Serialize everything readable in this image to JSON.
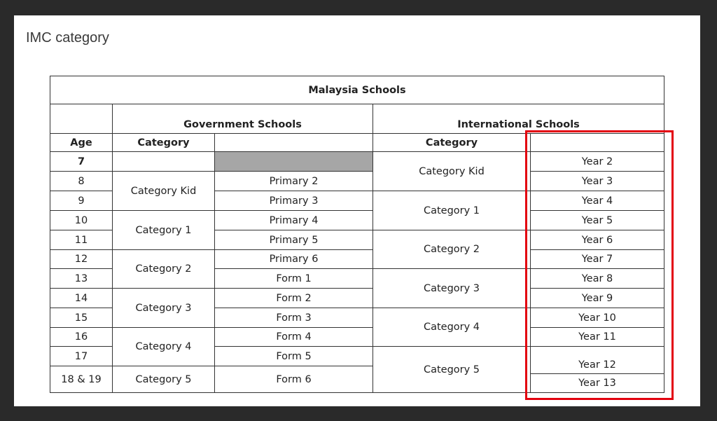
{
  "page": {
    "title": "IMC category"
  },
  "table": {
    "title": "Malaysia Schools",
    "government_header": "Government Schools",
    "international_header": "International Schools",
    "age_header": "Age",
    "category_header": "Category",
    "ages": [
      "7",
      "8",
      "9",
      "10",
      "11",
      "12",
      "13",
      "14",
      "15",
      "16",
      "17",
      "18 & 19"
    ],
    "government_categories": [
      "Category Kid",
      "Category 1",
      "Category 2",
      "Category 3",
      "Category 4",
      "Category 5"
    ],
    "government_levels": [
      "Primary 2",
      "Primary 3",
      "Primary 4",
      "Primary 5",
      "Primary 6",
      "Form 1",
      "Form 2",
      "Form 3",
      "Form 4",
      "Form 5",
      "Form 6"
    ],
    "international_categories": [
      "Category Kid",
      "Category 1",
      "Category 2",
      "Category 3",
      "Category 4",
      "Category 5"
    ],
    "international_years": [
      "Year 2",
      "Year 3",
      "Year 4",
      "Year 5",
      "Year 6",
      "Year 7",
      "Year 8",
      "Year 9",
      "Year 10",
      "Year 11",
      "Year 12",
      "Year 13"
    ],
    "highlight_color": "#e3000f",
    "grey_cell_color": "#a6a6a6"
  }
}
